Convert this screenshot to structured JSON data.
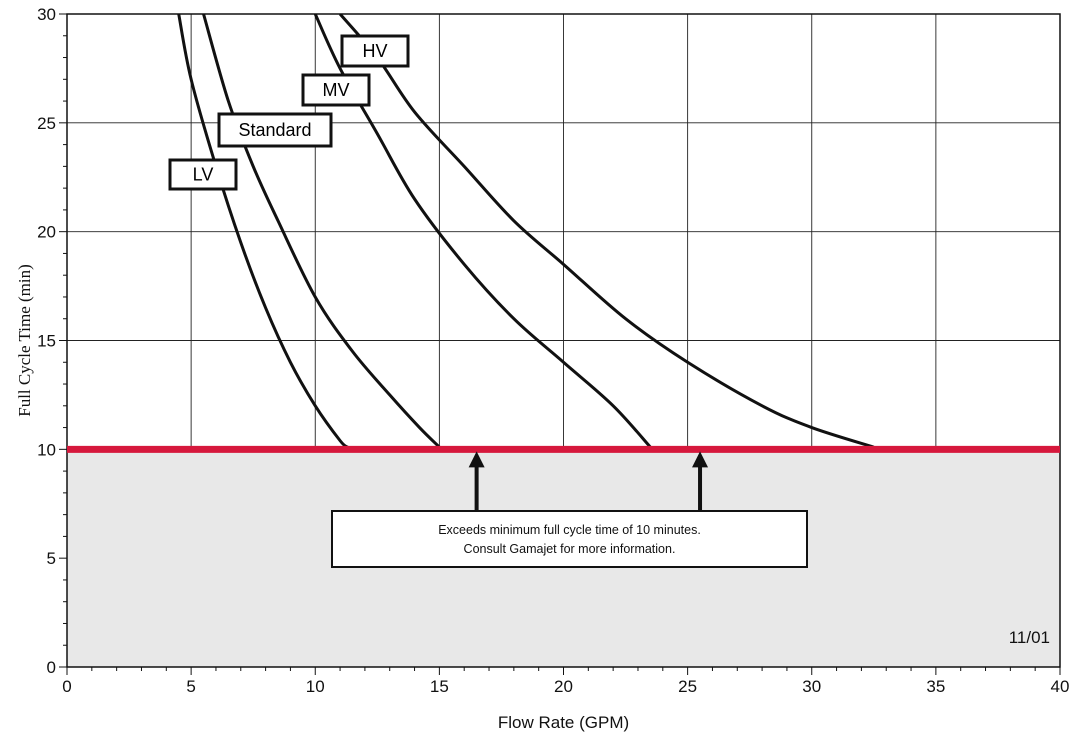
{
  "chart_data": {
    "type": "line",
    "title": "",
    "xlabel": "Flow Rate (GPM)",
    "ylabel": "Full Cycle Time (min)",
    "xlim": [
      0,
      40
    ],
    "ylim": [
      0,
      30
    ],
    "x_ticks": [
      0,
      5,
      10,
      15,
      20,
      25,
      30,
      35,
      40
    ],
    "y_ticks": [
      0,
      5,
      10,
      15,
      20,
      25,
      30
    ],
    "grid": true,
    "colors": {
      "threshold_line": "#d6183c",
      "shaded_region": "#e8e8e8",
      "curve": "#111111"
    },
    "series": [
      {
        "name": "LV",
        "points": [
          [
            4.5,
            30
          ],
          [
            5,
            27
          ],
          [
            6,
            23
          ],
          [
            7,
            19.5
          ],
          [
            8,
            16.5
          ],
          [
            9,
            14
          ],
          [
            10,
            12
          ],
          [
            11,
            10.4
          ],
          [
            11.3,
            10.1
          ]
        ]
      },
      {
        "name": "Standard",
        "points": [
          [
            5.5,
            30
          ],
          [
            6.5,
            26
          ],
          [
            7.5,
            23
          ],
          [
            8.5,
            20.5
          ],
          [
            10,
            17
          ],
          [
            11.5,
            14.5
          ],
          [
            13,
            12.5
          ],
          [
            14.2,
            11
          ],
          [
            15,
            10.1
          ]
        ]
      },
      {
        "name": "MV",
        "points": [
          [
            10,
            30
          ],
          [
            11,
            27.5
          ],
          [
            12.5,
            24.5
          ],
          [
            14,
            21.5
          ],
          [
            16,
            18.5
          ],
          [
            18,
            16
          ],
          [
            20,
            14
          ],
          [
            22,
            12
          ],
          [
            23.5,
            10.1
          ]
        ]
      },
      {
        "name": "HV",
        "points": [
          [
            11,
            30
          ],
          [
            12.5,
            28
          ],
          [
            14,
            25.5
          ],
          [
            16,
            23
          ],
          [
            18,
            20.5
          ],
          [
            20,
            18.5
          ],
          [
            22.5,
            16
          ],
          [
            25,
            14
          ],
          [
            28,
            12
          ],
          [
            30,
            11
          ],
          [
            32.5,
            10.1
          ]
        ]
      }
    ],
    "threshold": {
      "y": 10
    },
    "annotations": {
      "note_line1": "Exceeds minimum full cycle time of 10 minutes.",
      "note_line2": "Consult Gamajet for more information.",
      "date": "11/01",
      "arrow_x": [
        16.5,
        25.5
      ]
    }
  }
}
